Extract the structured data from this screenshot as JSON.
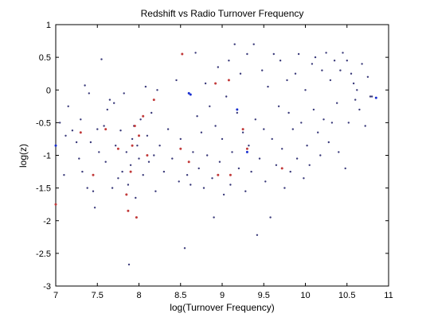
{
  "chart_data": {
    "type": "scatter",
    "title": "Redshift vs Radio Turnover Frequency",
    "xlabel": "log(Turnover Frequency)",
    "ylabel": "log(z)",
    "xlim": [
      7,
      11
    ],
    "ylim": [
      -3,
      1
    ],
    "xticks": [
      7,
      7.5,
      8,
      8.5,
      9,
      9.5,
      10,
      10.5,
      11
    ],
    "xtick_labels": [
      "7",
      "7.5",
      "8",
      "8.5",
      "9",
      "9.5",
      "10",
      "10.5",
      "11"
    ],
    "yticks": [
      -3,
      -2.5,
      -2,
      -1.5,
      -1,
      -0.5,
      0,
      0.5,
      1
    ],
    "ytick_labels": [
      "-3",
      "-2.5",
      "-2",
      "-1.5",
      "-1",
      "-0.5",
      "0",
      "0.5",
      "1"
    ],
    "grid": false,
    "series": [
      {
        "color": "#3a3a7a",
        "marker": "small-dot",
        "points": [
          [
            7.05,
            -0.5
          ],
          [
            7.1,
            -1.3
          ],
          [
            7.12,
            -0.7
          ],
          [
            7.15,
            -0.25
          ],
          [
            7.2,
            -0.62
          ],
          [
            7.25,
            -0.8
          ],
          [
            7.28,
            -1.05
          ],
          [
            7.3,
            -0.45
          ],
          [
            7.32,
            -1.25
          ],
          [
            7.35,
            0.07
          ],
          [
            7.38,
            -1.5
          ],
          [
            7.4,
            -0.05
          ],
          [
            7.42,
            -0.8
          ],
          [
            7.45,
            -1.55
          ],
          [
            7.47,
            -1.8
          ],
          [
            7.5,
            -0.6
          ],
          [
            7.52,
            -0.95
          ],
          [
            7.55,
            0.47
          ],
          [
            7.58,
            -0.55
          ],
          [
            7.6,
            -1.1
          ],
          [
            7.62,
            -0.3
          ],
          [
            7.65,
            -0.15
          ],
          [
            7.68,
            -1.5
          ],
          [
            7.7,
            -0.2
          ],
          [
            7.72,
            -0.85
          ],
          [
            7.75,
            -1.35
          ],
          [
            7.78,
            -0.62
          ],
          [
            7.8,
            -1.25
          ],
          [
            7.82,
            -0.05
          ],
          [
            7.85,
            -0.95
          ],
          [
            7.87,
            -1.45
          ],
          [
            7.88,
            -2.67
          ],
          [
            7.9,
            -1.15
          ],
          [
            7.92,
            -0.75
          ],
          [
            7.94,
            -0.55
          ],
          [
            7.96,
            -1.65
          ],
          [
            7.98,
            -0.85
          ],
          [
            8.0,
            -1.05
          ],
          [
            8.02,
            -0.45
          ],
          [
            8.05,
            -1.3
          ],
          [
            8.08,
            0.05
          ],
          [
            8.1,
            -0.7
          ],
          [
            8.12,
            -1.1
          ],
          [
            8.15,
            -0.35
          ],
          [
            8.18,
            -1.0
          ],
          [
            8.2,
            -1.55
          ],
          [
            8.22,
            0.0
          ],
          [
            8.25,
            -0.85
          ],
          [
            8.3,
            -1.25
          ],
          [
            8.35,
            -0.6
          ],
          [
            8.4,
            -1.05
          ],
          [
            8.45,
            0.15
          ],
          [
            8.48,
            -1.4
          ],
          [
            8.5,
            -0.75
          ],
          [
            8.52,
            0.55
          ],
          [
            8.55,
            -2.42
          ],
          [
            8.58,
            -1.3
          ],
          [
            8.6,
            -0.05
          ],
          [
            8.62,
            -1.45
          ],
          [
            8.65,
            -0.95
          ],
          [
            8.68,
            0.57
          ],
          [
            8.7,
            -0.4
          ],
          [
            8.72,
            -1.2
          ],
          [
            8.75,
            -0.65
          ],
          [
            8.78,
            -1.5
          ],
          [
            8.8,
            0.1
          ],
          [
            8.82,
            -1.0
          ],
          [
            8.85,
            -0.25
          ],
          [
            8.88,
            -1.35
          ],
          [
            8.9,
            -1.95
          ],
          [
            8.92,
            -0.55
          ],
          [
            8.95,
            0.35
          ],
          [
            8.97,
            -1.1
          ],
          [
            9.0,
            -0.75
          ],
          [
            9.02,
            -1.6
          ],
          [
            9.05,
            -0.1
          ],
          [
            9.08,
            0.45
          ],
          [
            9.1,
            -1.45
          ],
          [
            9.12,
            -0.95
          ],
          [
            9.15,
            0.7
          ],
          [
            9.18,
            -0.35
          ],
          [
            9.2,
            -1.2
          ],
          [
            9.22,
            0.25
          ],
          [
            9.25,
            -0.65
          ],
          [
            9.28,
            -1.55
          ],
          [
            9.3,
            0.55
          ],
          [
            9.32,
            -0.85
          ],
          [
            9.35,
            -1.25
          ],
          [
            9.38,
            0.7
          ],
          [
            9.4,
            -0.45
          ],
          [
            9.42,
            -2.22
          ],
          [
            9.45,
            -1.05
          ],
          [
            9.48,
            0.3
          ],
          [
            9.5,
            -0.6
          ],
          [
            9.52,
            -1.4
          ],
          [
            9.55,
            0.05
          ],
          [
            9.58,
            -1.95
          ],
          [
            9.6,
            -0.75
          ],
          [
            9.62,
            0.55
          ],
          [
            9.65,
            -1.15
          ],
          [
            9.68,
            -0.25
          ],
          [
            9.7,
            0.45
          ],
          [
            9.72,
            -0.9
          ],
          [
            9.75,
            -1.5
          ],
          [
            9.78,
            0.15
          ],
          [
            9.8,
            -0.35
          ],
          [
            9.82,
            -1.25
          ],
          [
            9.85,
            -0.6
          ],
          [
            9.88,
            0.25
          ],
          [
            9.9,
            -1.05
          ],
          [
            9.92,
            0.55
          ],
          [
            9.95,
            -0.5
          ],
          [
            9.98,
            -1.35
          ],
          [
            10.0,
            0.0
          ],
          [
            10.02,
            -0.85
          ],
          [
            10.05,
            -1.15
          ],
          [
            10.08,
            0.4
          ],
          [
            10.1,
            -0.3
          ],
          [
            10.12,
            0.5
          ],
          [
            10.15,
            -0.65
          ],
          [
            10.18,
            -1.0
          ],
          [
            10.2,
            0.3
          ],
          [
            10.22,
            -0.45
          ],
          [
            10.25,
            0.57
          ],
          [
            10.28,
            -0.8
          ],
          [
            10.3,
            0.15
          ],
          [
            10.32,
            -0.5
          ],
          [
            10.35,
            0.45
          ],
          [
            10.38,
            -0.2
          ],
          [
            10.4,
            -0.95
          ],
          [
            10.42,
            0.3
          ],
          [
            10.45,
            0.57
          ],
          [
            10.48,
            -1.2
          ],
          [
            10.5,
            0.45
          ],
          [
            10.52,
            -0.5
          ],
          [
            10.55,
            0.25
          ],
          [
            10.58,
            0.1
          ],
          [
            10.6,
            -0.15
          ],
          [
            10.62,
            0.0
          ],
          [
            10.65,
            -0.3
          ],
          [
            10.68,
            0.4
          ],
          [
            10.72,
            -0.55
          ],
          [
            10.75,
            0.2
          ],
          [
            10.78,
            -0.1
          ],
          [
            10.8,
            -0.1
          ]
        ]
      },
      {
        "color": "#c23a3a",
        "marker": "small-dot",
        "points": [
          [
            7.0,
            -1.75
          ],
          [
            7.3,
            -0.65
          ],
          [
            7.45,
            -1.3
          ],
          [
            7.6,
            -0.6
          ],
          [
            7.75,
            -0.9
          ],
          [
            7.85,
            -1.6
          ],
          [
            7.87,
            -1.85
          ],
          [
            7.9,
            -1.25
          ],
          [
            7.92,
            -0.85
          ],
          [
            7.95,
            -0.55
          ],
          [
            7.97,
            -1.95
          ],
          [
            8.0,
            -0.7
          ],
          [
            8.05,
            -0.4
          ],
          [
            8.1,
            -1.0
          ],
          [
            8.18,
            -0.15
          ],
          [
            8.5,
            -0.9
          ],
          [
            8.52,
            0.55
          ],
          [
            8.6,
            -1.1
          ],
          [
            8.92,
            0.1
          ],
          [
            8.95,
            -1.3
          ],
          [
            9.08,
            0.15
          ],
          [
            9.1,
            -1.3
          ],
          [
            9.25,
            -0.6
          ],
          [
            9.3,
            -0.9
          ],
          [
            9.72,
            -1.2
          ]
        ]
      },
      {
        "color": "#1a2fd0",
        "marker": "small-dot",
        "points": [
          [
            7.0,
            -0.85
          ],
          [
            8.6,
            -0.05
          ],
          [
            8.62,
            -0.07
          ],
          [
            9.18,
            -0.3
          ],
          [
            9.3,
            -0.95
          ],
          [
            10.85,
            -0.12
          ]
        ]
      }
    ]
  }
}
